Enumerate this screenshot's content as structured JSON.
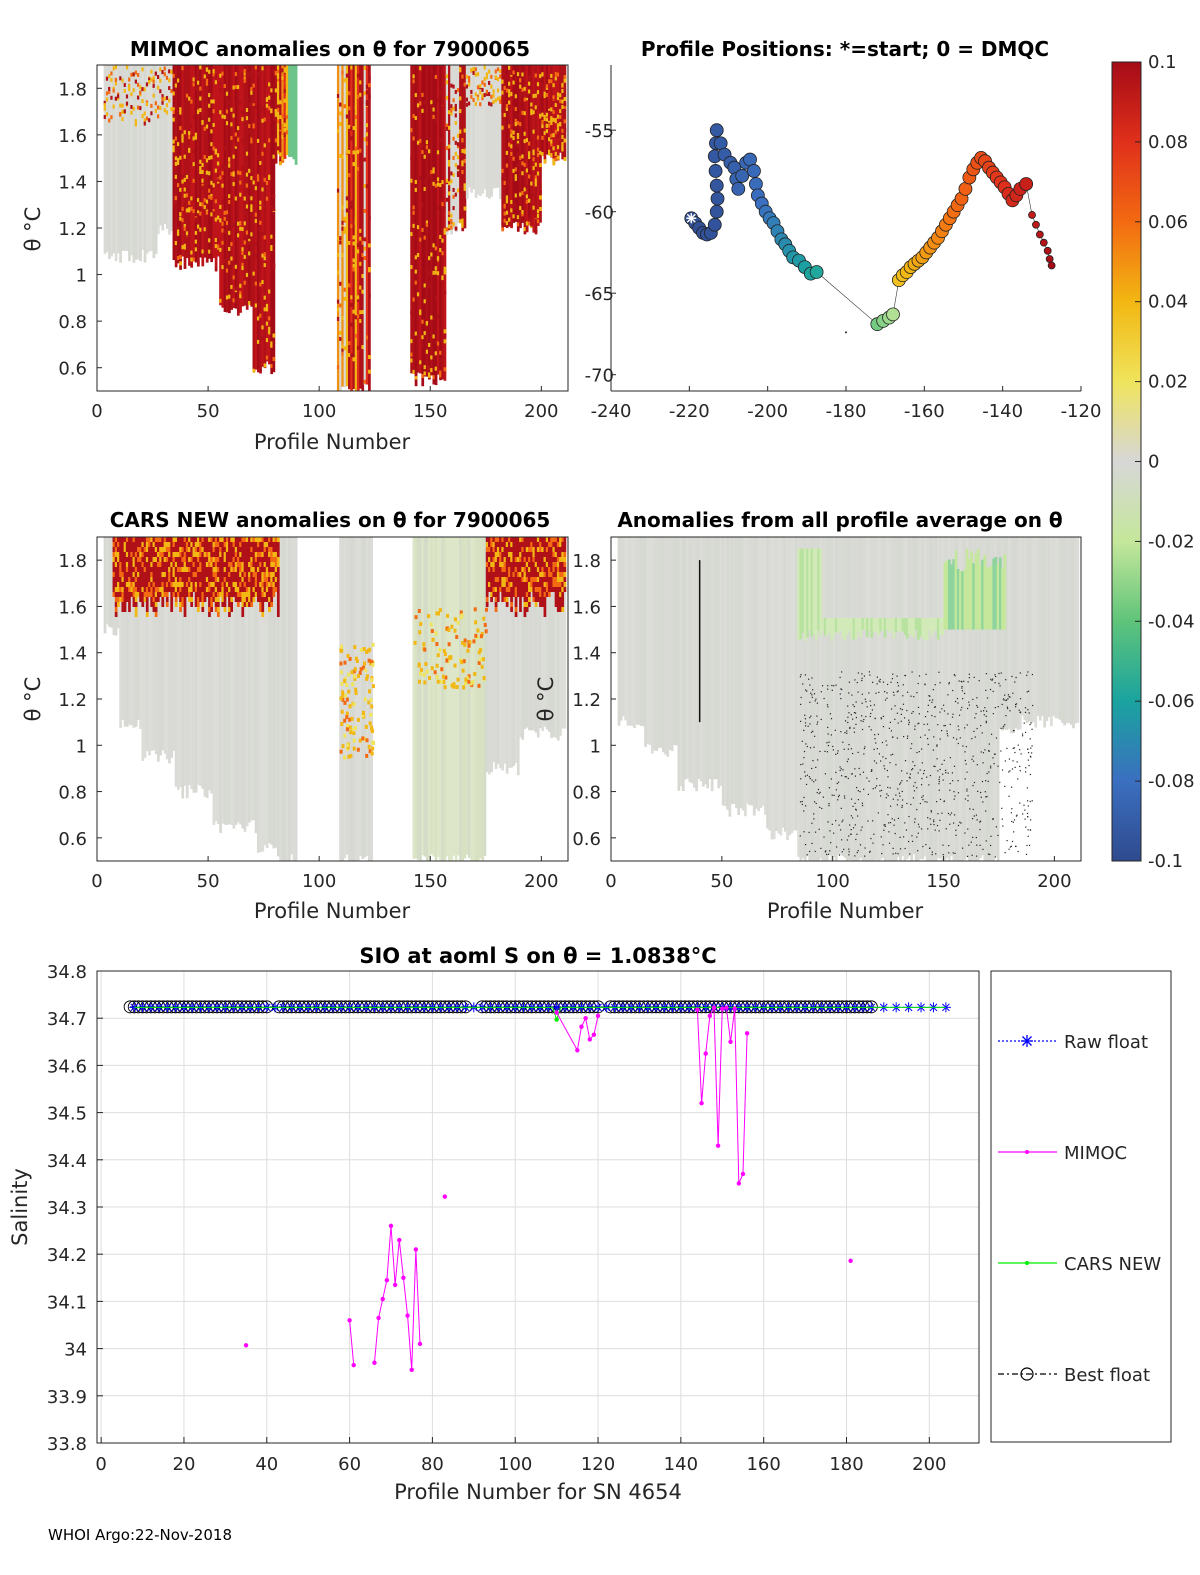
{
  "figure": {
    "footer": "WHOI Argo:22-Nov-2018"
  },
  "chart_data": [
    {
      "type": "heatmap",
      "id": "mimoc",
      "title": "MIMOC anomalies on θ  for 7900065",
      "xlabel": "Profile Number",
      "ylabel": "θ °C",
      "xlim": [
        0,
        212
      ],
      "ylim": [
        0.5,
        1.9
      ],
      "xticks": [
        0,
        50,
        100,
        150,
        200
      ],
      "yticks": [
        0.6,
        0.8,
        1,
        1.2,
        1.4,
        1.6,
        1.8
      ],
      "profile_columns": [
        {
          "x0": 3,
          "x1": 27,
          "ybot": 1.08,
          "base": "gray"
        },
        {
          "x0": 27,
          "x1": 34,
          "ybot": 1.2,
          "base": "gray"
        },
        {
          "x0": 34,
          "x1": 55,
          "ybot": 1.05,
          "base": "red"
        },
        {
          "x0": 55,
          "x1": 70,
          "ybot": 0.85,
          "base": "red"
        },
        {
          "x0": 70,
          "x1": 80,
          "ybot": 0.6,
          "base": "red"
        },
        {
          "x0": 80,
          "x1": 86,
          "ybot": 1.5,
          "base": "mixed"
        },
        {
          "x0": 86,
          "x1": 90,
          "ybot": 1.5,
          "base": "green"
        },
        {
          "x0": 108,
          "x1": 123,
          "ybot": 0.5,
          "base": "mixed"
        },
        {
          "x0": 141,
          "x1": 157,
          "ybot": 0.55,
          "base": "red"
        },
        {
          "x0": 157,
          "x1": 166,
          "ybot": 1.2,
          "base": "mixed"
        },
        {
          "x0": 166,
          "x1": 182,
          "ybot": 1.35,
          "base": "gray"
        },
        {
          "x0": 182,
          "x1": 200,
          "ybot": 1.2,
          "base": "red"
        },
        {
          "x0": 200,
          "x1": 211,
          "ybot": 1.5,
          "base": "red"
        }
      ]
    },
    {
      "type": "scatter",
      "id": "positions",
      "title": "Profile Positions: *=start; 0 = DMQC",
      "xlim": [
        -240,
        -120
      ],
      "ylim": [
        -71,
        -51
      ],
      "xticks": [
        -240,
        -220,
        -200,
        -180,
        -160,
        -140,
        -120
      ],
      "yticks": [
        -55,
        -60,
        -65,
        -70
      ],
      "points": [
        [
          -219.5,
          -60.4
        ],
        [
          -218.5,
          -60.7
        ],
        [
          -217.5,
          -61.0
        ],
        [
          -216.5,
          -61.3
        ],
        [
          -215.5,
          -61.4
        ],
        [
          -214.5,
          -61.3
        ],
        [
          -213.5,
          -60.8
        ],
        [
          -213.0,
          -60.0
        ],
        [
          -212.8,
          -59.2
        ],
        [
          -213.0,
          -58.4
        ],
        [
          -213.3,
          -57.5
        ],
        [
          -213.5,
          -56.6
        ],
        [
          -213.2,
          -55.8
        ],
        [
          -213.0,
          -55.0
        ],
        [
          -212.0,
          -55.8
        ],
        [
          -211.0,
          -56.5
        ],
        [
          -209.5,
          -57.0
        ],
        [
          -208.5,
          -57.3
        ],
        [
          -208.0,
          -58.0
        ],
        [
          -207.5,
          -58.6
        ],
        [
          -206.5,
          -57.8
        ],
        [
          -205.5,
          -57.0
        ],
        [
          -204.5,
          -56.8
        ],
        [
          -203.5,
          -57.5
        ],
        [
          -203.0,
          -58.3
        ],
        [
          -202.5,
          -59.0
        ],
        [
          -201.5,
          -59.5
        ],
        [
          -200.5,
          -60.0
        ],
        [
          -199.5,
          -60.4
        ],
        [
          -198.5,
          -60.7
        ],
        [
          -197.5,
          -61.2
        ],
        [
          -196.5,
          -61.7
        ],
        [
          -195.5,
          -62.0
        ],
        [
          -194.5,
          -62.4
        ],
        [
          -193.5,
          -62.8
        ],
        [
          -192.0,
          -63.0
        ],
        [
          -190.5,
          -63.4
        ],
        [
          -189.0,
          -63.8
        ],
        [
          -187.5,
          -63.7
        ],
        [
          -172,
          -66.9
        ],
        [
          -170.5,
          -66.7
        ],
        [
          -169,
          -66.5
        ],
        [
          -168,
          -66.3
        ],
        [
          -166.5,
          -64.2
        ],
        [
          -165.5,
          -63.9
        ],
        [
          -164.5,
          -63.7
        ],
        [
          -163.5,
          -63.4
        ],
        [
          -162.5,
          -63.2
        ],
        [
          -161.5,
          -63.0
        ],
        [
          -160.5,
          -62.8
        ],
        [
          -159.5,
          -62.5
        ],
        [
          -158.5,
          -62.2
        ],
        [
          -157.5,
          -61.9
        ],
        [
          -156.5,
          -61.6
        ],
        [
          -155.5,
          -61.2
        ],
        [
          -154.5,
          -60.8
        ],
        [
          -153.5,
          -60.4
        ],
        [
          -152.5,
          -60.0
        ],
        [
          -151.5,
          -59.6
        ],
        [
          -150.5,
          -59.2
        ],
        [
          -149.5,
          -58.6
        ],
        [
          -148.5,
          -57.9
        ],
        [
          -147.5,
          -57.4
        ],
        [
          -146.5,
          -57.0
        ],
        [
          -145.5,
          -56.7
        ],
        [
          -144.5,
          -56.9
        ],
        [
          -143.5,
          -57.3
        ],
        [
          -142.5,
          -57.6
        ],
        [
          -141.5,
          -57.9
        ],
        [
          -140.5,
          -58.2
        ],
        [
          -139.5,
          -58.5
        ],
        [
          -138.5,
          -58.9
        ],
        [
          -137.5,
          -59.3
        ],
        [
          -136.5,
          -59.0
        ],
        [
          -135.5,
          -58.6
        ],
        [
          -134.0,
          -58.3
        ],
        [
          -132.5,
          -60.2
        ],
        [
          -131.5,
          -60.8
        ],
        [
          -130.5,
          -61.4
        ],
        [
          -129.5,
          -61.9
        ],
        [
          -128.5,
          -62.4
        ],
        [
          -128.0,
          -62.9
        ],
        [
          -127.5,
          -63.3
        ]
      ],
      "colorbar": {
        "ticks": [
          0.1,
          0.08,
          0.06,
          0.04,
          0.02,
          0,
          -0.02,
          -0.04,
          -0.06,
          -0.08,
          -0.1
        ],
        "tick_labels": [
          "0.1",
          "0.08",
          "0.06",
          "0.04",
          "0.02",
          "0",
          "-0.02",
          "-0.04",
          "-0.06",
          "-0.08",
          "-0.1"
        ],
        "clim": [
          -0.1,
          0.1
        ]
      }
    },
    {
      "type": "heatmap",
      "id": "cars",
      "title": "CARS NEW anomalies on θ for 7900065",
      "xlabel": "Profile Number",
      "ylabel": "θ °C",
      "xlim": [
        0,
        212
      ],
      "ylim": [
        0.5,
        1.9
      ],
      "xticks": [
        0,
        50,
        100,
        150,
        200
      ],
      "yticks": [
        0.6,
        0.8,
        1,
        1.2,
        1.4,
        1.6,
        1.8
      ],
      "profile_columns": [
        {
          "x0": 3,
          "x1": 10,
          "ybot": 1.5,
          "base": "gray"
        },
        {
          "x0": 10,
          "x1": 20,
          "ybot": 1.1,
          "base": "gray"
        },
        {
          "x0": 20,
          "x1": 35,
          "ybot": 0.95,
          "base": "gray"
        },
        {
          "x0": 35,
          "x1": 52,
          "ybot": 0.8,
          "base": "gray"
        },
        {
          "x0": 52,
          "x1": 72,
          "ybot": 0.65,
          "base": "gray"
        },
        {
          "x0": 72,
          "x1": 82,
          "ybot": 0.55,
          "base": "gray"
        },
        {
          "x0": 82,
          "x1": 90,
          "ybot": 0.5,
          "base": "gray"
        },
        {
          "x0": 109,
          "x1": 124,
          "ybot": 0.5,
          "base": "gray"
        },
        {
          "x0": 142,
          "x1": 155,
          "ybot": 0.5,
          "base": "lgreen"
        },
        {
          "x0": 155,
          "x1": 175,
          "ybot": 0.5,
          "base": "lgreen"
        },
        {
          "x0": 175,
          "x1": 190,
          "ybot": 0.9,
          "base": "gray"
        },
        {
          "x0": 190,
          "x1": 211,
          "ybot": 1.05,
          "base": "gray"
        }
      ],
      "red_band_top": 1.9,
      "red_band_bottom": 1.62
    },
    {
      "type": "heatmap",
      "id": "allavg",
      "title": "Anomalies from all profile average on θ",
      "xlabel": "Profile Number",
      "ylabel": "θ °C",
      "xlim": [
        0,
        212
      ],
      "ylim": [
        0.5,
        1.9
      ],
      "xticks": [
        0,
        50,
        100,
        150,
        200
      ],
      "yticks": [
        0.6,
        0.8,
        1,
        1.2,
        1.4,
        1.6,
        1.8
      ],
      "profile_columns": [
        {
          "x0": 3,
          "x1": 15,
          "ybot": 1.1,
          "base": "gray"
        },
        {
          "x0": 15,
          "x1": 30,
          "ybot": 0.98,
          "base": "gray"
        },
        {
          "x0": 30,
          "x1": 50,
          "ybot": 0.83,
          "base": "gray"
        },
        {
          "x0": 50,
          "x1": 70,
          "ybot": 0.72,
          "base": "gray"
        },
        {
          "x0": 70,
          "x1": 84,
          "ybot": 0.62,
          "base": "gray"
        },
        {
          "x0": 84,
          "x1": 150,
          "ybot": 0.5,
          "base": "gray"
        },
        {
          "x0": 150,
          "x1": 175,
          "ybot": 0.5,
          "base": "gray"
        },
        {
          "x0": 175,
          "x1": 185,
          "ybot": 1.05,
          "base": "gray"
        },
        {
          "x0": 185,
          "x1": 211,
          "ybot": 1.1,
          "base": "gray"
        }
      ]
    },
    {
      "type": "line",
      "id": "salinity",
      "title": "SIO at aoml S on θ = 1.0838°C",
      "xlabel": "Profile Number for SN 4654",
      "ylabel": "Salinity",
      "xlim": [
        -1,
        212
      ],
      "ylim": [
        33.8,
        34.8
      ],
      "xticks": [
        0,
        20,
        40,
        60,
        80,
        100,
        120,
        140,
        160,
        180,
        200
      ],
      "yticks": [
        33.8,
        33.9,
        34,
        34.1,
        34.2,
        34.3,
        34.4,
        34.5,
        34.6,
        34.7,
        34.8
      ],
      "ytick_labels": [
        "33.8",
        "33.9",
        "34",
        "34.1",
        "34.2",
        "34.3",
        "34.4",
        "34.5",
        "34.6",
        "34.7",
        "34.8"
      ],
      "grid": true,
      "legend": [
        "Raw float",
        "MIMOC",
        "CARS NEW",
        "Best float"
      ],
      "series": [
        {
          "name": "Raw float",
          "color": "#0000ff",
          "x_range": [
            7,
            204
          ],
          "value": 34.723,
          "gaps": [
            [
              41,
              42
            ],
            [
              89,
              91
            ],
            [
              121,
              122
            ]
          ]
        },
        {
          "name": "MIMOC",
          "color": "#ff00ff",
          "segments": [
            [
              [
                35,
                34.007
              ]
            ],
            [
              [
                60,
                34.06
              ],
              [
                61,
                33.965
              ]
            ],
            [
              [
                66,
                33.97
              ],
              [
                67,
                34.065
              ],
              [
                68,
                34.105
              ],
              [
                69,
                34.145
              ],
              [
                70,
                34.26
              ],
              [
                71,
                34.135
              ],
              [
                72,
                34.23
              ],
              [
                73,
                34.15
              ],
              [
                74,
                34.07
              ],
              [
                75,
                33.955
              ],
              [
                76,
                34.21
              ],
              [
                77,
                34.01
              ]
            ],
            [
              [
                83,
                34.322
              ]
            ],
            [
              [
                110,
                34.712
              ],
              [
                115,
                34.632
              ],
              [
                116,
                34.682
              ],
              [
                117,
                34.7
              ],
              [
                118,
                34.655
              ],
              [
                119,
                34.665
              ],
              [
                120,
                34.705
              ]
            ],
            [
              [
                144,
                34.718
              ],
              [
                145,
                34.52
              ],
              [
                146,
                34.625
              ],
              [
                147,
                34.705
              ],
              [
                148,
                34.722
              ],
              [
                149,
                34.43
              ],
              [
                150,
                34.72
              ],
              [
                151,
                34.722
              ],
              [
                152,
                34.65
              ],
              [
                153,
                34.72
              ],
              [
                154,
                34.35
              ],
              [
                155,
                34.37
              ],
              [
                156,
                34.668
              ]
            ],
            [
              [
                181,
                34.186
              ]
            ]
          ]
        },
        {
          "name": "CARS NEW",
          "color": "#00ee00",
          "x_range": [
            8,
            204
          ],
          "value": 34.723,
          "dips": [
            [
              110,
              34.697
            ]
          ]
        },
        {
          "name": "Best float",
          "color": "#000000",
          "x_range": [
            7,
            186
          ],
          "value": 34.724,
          "gaps": [
            [
              41,
              42
            ],
            [
              89,
              91
            ],
            [
              121,
              122
            ]
          ]
        }
      ]
    }
  ]
}
